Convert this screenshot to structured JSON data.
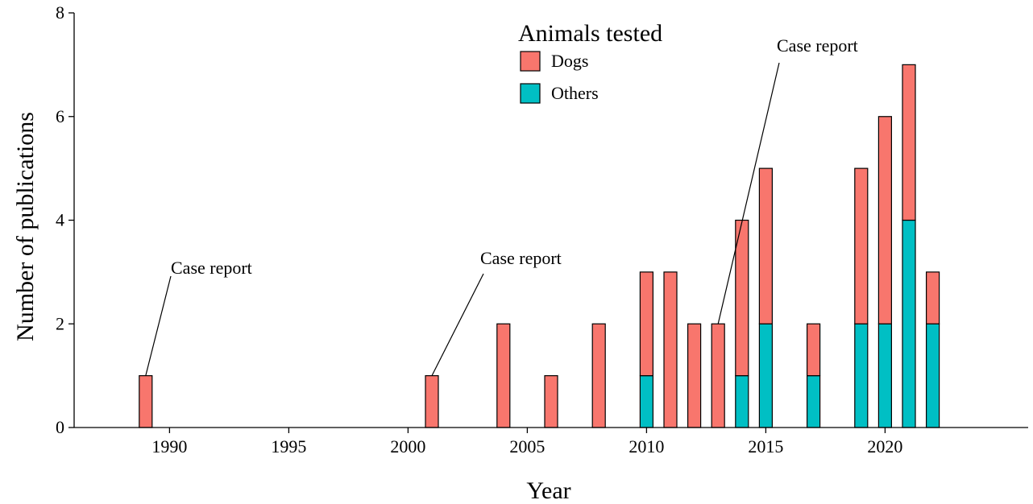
{
  "chart_data": {
    "type": "bar",
    "stacked": true,
    "xlabel": "Year",
    "ylabel": "Number of publications",
    "xlim": [
      1986,
      2026
    ],
    "ylim": [
      0,
      8
    ],
    "x_ticks": [
      "1990",
      "1995",
      "2000",
      "2005",
      "2010",
      "2015",
      "2020"
    ],
    "y_ticks": [
      "0",
      "2",
      "4",
      "6",
      "8"
    ],
    "grid": false,
    "years": [
      1989,
      2001,
      2004,
      2006,
      2008,
      2010,
      2011,
      2012,
      2013,
      2014,
      2015,
      2017,
      2019,
      2020,
      2021,
      2022
    ],
    "series": [
      {
        "name": "Others",
        "color": "#00BFC4",
        "values": [
          0,
          0,
          0,
          0,
          0,
          1,
          0,
          0,
          0,
          1,
          2,
          1,
          2,
          2,
          4,
          2
        ]
      },
      {
        "name": "Dogs",
        "color": "#F8766D",
        "values": [
          1,
          1,
          2,
          1,
          2,
          2,
          3,
          2,
          2,
          3,
          3,
          1,
          3,
          4,
          3,
          1
        ]
      }
    ],
    "legend": {
      "title": "Animals tested",
      "position": "top-center",
      "entries": [
        {
          "label": "Dogs",
          "color": "#F8766D"
        },
        {
          "label": "Others",
          "color": "#00BFC4"
        }
      ]
    },
    "annotations": [
      {
        "text": "Case report",
        "year": 1989,
        "value": 1
      },
      {
        "text": "Case report",
        "year": 2001,
        "value": 1
      },
      {
        "text": "Case report",
        "year": 2013,
        "value": 2
      }
    ]
  }
}
